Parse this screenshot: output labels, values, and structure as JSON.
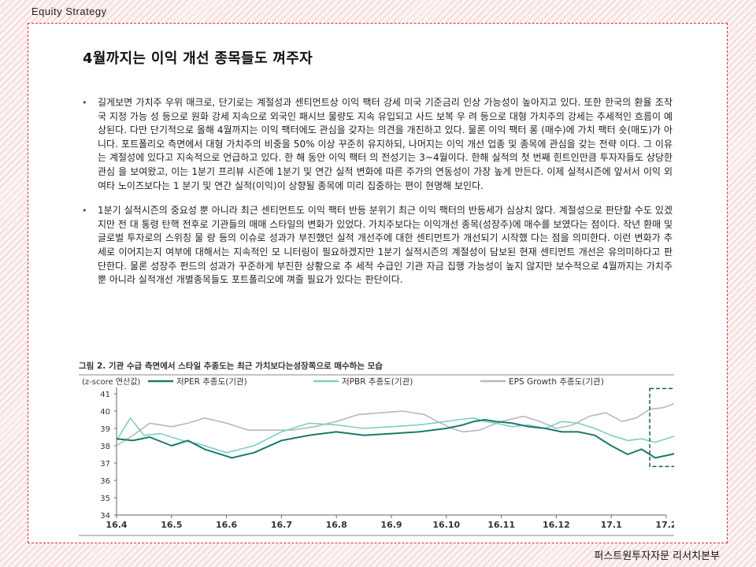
{
  "header": {
    "section": "Equity  Strategy"
  },
  "page": {
    "title": "4월까지는 이익 개선 종목들도 껴주자",
    "paragraphs": [
      "길게보면 가치주 우위 매크로, 단기로는 계절성과 센티먼트상 이익 팩터 강세 미국 기준금리 인상 가능성이 높아지고 있다. 또한 한국의 환율 조작국 지정 가능 성 등으로 원화 강세 지속으로 외국인 패시브 물량도 지속 유입되고 사드 보복 우 려 등으로 대형 가치주의 강세는 추세적인 흐름이 예상된다. 다만 단기적으로 올해 4월까지는 이익 팩터에도 관심을 갖자는 의견을 개진하고 있다. 물론 이익 팩터 롱 (매수)에 가치 팩터 숏(매도)가 아니다. 포트폴리오 측면에서 대형 가치주의 비중을 50% 이상 꾸준히 유지하되, 나머지는 이익 개선 업종 및 종목에 관심을 갖는 전략 이다. 그 이유는 계절성에 있다고 지속적으로 언급하고 있다. 한 해 동안 이익 팩터 의 전성기는 3~4월이다. 한해 실적의 첫 번째 힌트인만큼 투자자들도 상당한 관심 을 보여왔고, 이는 1분기 프리뷰 시즌에 1분기 및 연간 실적 변화에 따른 주가의 연동성이 가장 높게 만든다. 이제 실적시즌에 앞서서 이익 외 여타 노이즈보다는 1 분기 및 연간 실적(이익)이 상향될 종목에 미리 집중하는 편이 현명해 보인다.",
      "1분기 실적시즌의 중요성 뿐 아니라 최근 센티먼트도 이익 팩터 반등 분위기 최근 이익 팩터의 반등세가 심상치 않다. 계절성으로 판단할 수도 있겠지만 전 대 통령 탄핵 전후로 기관들의 매매 스타일의 변화가 있었다. 가치주보다는 이익개선 종목(성장주)에 매수를 보였다는 점이다. 작년 환매 및 글로벌 투자로의 스위칭 물 량 등의 이슈로 성과가 부진했던 실적 개선주에 대한 센티먼트가 개선되기 시작했 다는 점을 의미한다. 이런 변화가 추세로 이어지는지 여부에 대해서는 지속적인 모 니터링이 필요하겠지만 1분기 실적시즌의 계절성이 담보된 현재 센티먼트 개선은 유의미하다고 판단한다. 물론 성장주 펀드의 성과가 꾸준하게 부진한 상황으로 추 세적 수급인 기관 자금 집행 가능성이 높지 않지만 보수적으로 4월까지는 가치주 뿐 아니라 실적개선 개별종목들도 포트폴리오에 껴줄 필요가 있다는 판단이다."
    ]
  },
  "figure": {
    "caption": "그림 2. 기관 수급 측면에서 스타일 추종도는 최근 가치보다는성장쪽으로 매수하는 모습"
  },
  "footer": {
    "org": "퍼스트원투자자문 리서치본부"
  },
  "chart_data": {
    "type": "line",
    "ylabel": "(z-score 연산값)",
    "ylim": [
      34,
      41
    ],
    "yticks": [
      34,
      35,
      36,
      37,
      38,
      39,
      40,
      41
    ],
    "categories": [
      "16.4",
      "16.5",
      "16.6",
      "16.7",
      "16.8",
      "16.9",
      "16.10",
      "16.11",
      "16.12",
      "17.1",
      "17.2"
    ],
    "legend_position": "top",
    "highlight_box": {
      "x_from": 9.7,
      "x_to": 11.0,
      "y_from": 36.8,
      "y_to": 41.3
    },
    "series": [
      {
        "name": "저PER 추종도(기관)",
        "color": "#1a7a6b",
        "values": [
          38.4,
          38.3,
          38.5,
          38.0,
          38.3,
          37.8,
          37.3,
          37.6,
          38.3,
          38.6,
          38.8,
          38.6,
          38.7,
          38.8,
          39.0,
          39.2,
          39.4,
          39.5,
          39.4,
          39.3,
          39.1,
          39.0,
          38.8,
          38.8,
          38.6,
          38.0,
          37.5,
          37.8,
          37.3,
          37.5,
          37.8,
          37.5,
          37.3
        ],
        "x": [
          0,
          0.3,
          0.6,
          1.0,
          1.3,
          1.6,
          2.1,
          2.5,
          3.0,
          3.5,
          4.0,
          4.5,
          5.0,
          5.5,
          6.0,
          6.3,
          6.5,
          6.7,
          6.9,
          7.2,
          7.5,
          7.8,
          8.1,
          8.4,
          8.7,
          9.0,
          9.3,
          9.55,
          9.8,
          10.1,
          10.4,
          10.7,
          10.95
        ]
      },
      {
        "name": "저PBR 추종도(기관)",
        "color": "#7ecfc0",
        "values": [
          38.3,
          39.6,
          38.6,
          38.7,
          38.3,
          38.1,
          37.6,
          38.0,
          38.8,
          39.3,
          39.2,
          39.0,
          39.1,
          39.2,
          39.4,
          39.5,
          39.6,
          39.4,
          39.3,
          39.1,
          39.2,
          39.0,
          39.4,
          39.3,
          39.0,
          38.6,
          38.3,
          38.4,
          38.2,
          38.5,
          38.8,
          38.2,
          37.8
        ],
        "x": [
          0,
          0.25,
          0.5,
          0.8,
          1.2,
          1.5,
          2.0,
          2.5,
          3.0,
          3.5,
          4.0,
          4.5,
          5.0,
          5.5,
          6.0,
          6.2,
          6.5,
          6.7,
          6.9,
          7.2,
          7.5,
          7.8,
          8.1,
          8.4,
          8.7,
          9.0,
          9.3,
          9.55,
          9.8,
          10.1,
          10.4,
          10.7,
          10.95
        ]
      },
      {
        "name": "EPS Growth 추종도(기관)",
        "color": "#b8b8b8",
        "values": [
          38.0,
          38.6,
          39.3,
          39.1,
          39.3,
          39.6,
          39.3,
          38.9,
          38.9,
          38.9,
          39.1,
          39.4,
          39.8,
          40.0,
          39.8,
          39.3,
          39.0,
          38.8,
          38.9,
          39.4,
          39.7,
          39.4,
          39.0,
          39.2,
          39.7,
          39.9,
          39.4,
          39.6,
          40.1,
          40.2,
          40.5,
          40.0,
          40.3,
          40.7
        ],
        "x": [
          0,
          0.3,
          0.6,
          1.0,
          1.3,
          1.6,
          2.0,
          2.4,
          2.8,
          3.2,
          3.6,
          4.0,
          4.4,
          5.2,
          5.6,
          5.9,
          6.1,
          6.3,
          6.6,
          7.0,
          7.4,
          7.7,
          8.0,
          8.3,
          8.6,
          8.9,
          9.2,
          9.45,
          9.7,
          9.95,
          10.2,
          10.5,
          10.8,
          10.95
        ]
      }
    ]
  }
}
